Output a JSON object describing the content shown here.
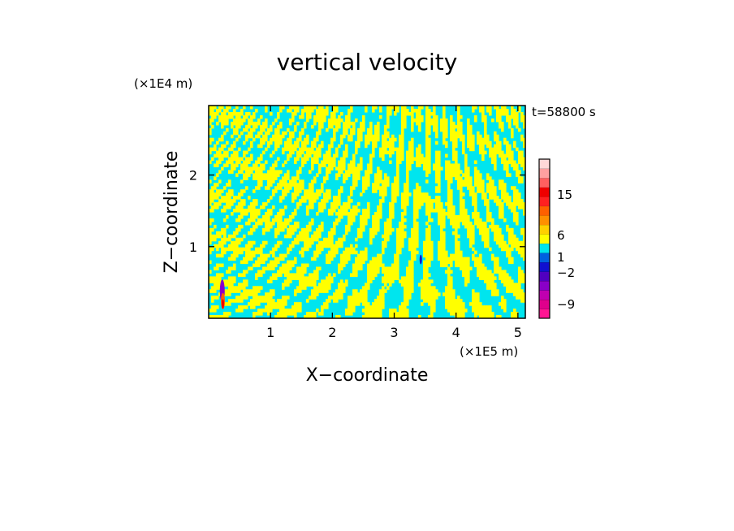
{
  "chart_data": {
    "type": "heatmap",
    "title": "vertical velocity",
    "time_label": "t=58800 s",
    "xlabel": "X−coordinate",
    "ylabel": "Z−coordinate",
    "x_unit": "(×1E5 m)",
    "y_unit": "(×1E4 m)",
    "xlim": [
      0,
      5.12
    ],
    "ylim": [
      0,
      2.97
    ],
    "x_ticks": [
      {
        "value": 1,
        "label": "1"
      },
      {
        "value": 2,
        "label": "2"
      },
      {
        "value": 3,
        "label": "3"
      },
      {
        "value": 4,
        "label": "4"
      },
      {
        "value": 5,
        "label": "5"
      }
    ],
    "y_ticks": [
      {
        "value": 1,
        "label": "1"
      },
      {
        "value": 2,
        "label": "2"
      }
    ],
    "field_colors": {
      "negative": "#00e5ee",
      "positive": "#ffff00"
    },
    "colorbar": {
      "levels": [
        {
          "color": "#ff1493"
        },
        {
          "color": "#e0008c"
        },
        {
          "color": "#c000b0"
        },
        {
          "color": "#8a00c8"
        },
        {
          "color": "#5000c0"
        },
        {
          "color": "#1010d0"
        },
        {
          "color": "#0060e0"
        },
        {
          "color": "#00e5ee"
        },
        {
          "color": "#ffff00"
        },
        {
          "color": "#ffd000"
        },
        {
          "color": "#ff9000"
        },
        {
          "color": "#ff6000"
        },
        {
          "color": "#ff2020"
        },
        {
          "color": "#ee0000"
        },
        {
          "color": "#ff6060"
        },
        {
          "color": "#ffa0a0"
        },
        {
          "color": "#ffd8d8"
        }
      ],
      "labels": [
        "15",
        "6",
        "1",
        "−2",
        "−9"
      ]
    }
  }
}
